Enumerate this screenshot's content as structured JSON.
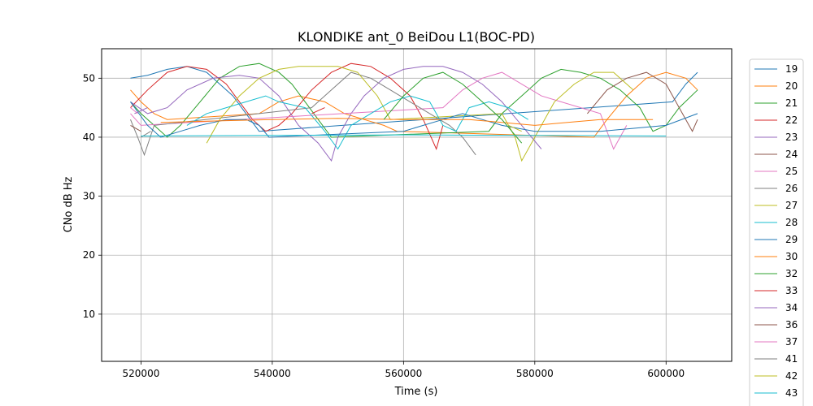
{
  "chart_data": {
    "type": "line",
    "title": "KLONDIKE ant_0 BeiDou L1(BOC-PD)",
    "xlabel": "Time (s)",
    "ylabel": "CNo dB Hz",
    "xlim": [
      514000,
      610000
    ],
    "ylim": [
      2,
      55
    ],
    "xticks": [
      520000,
      540000,
      560000,
      580000,
      600000
    ],
    "xtick_labels": [
      "520000",
      "540000",
      "560000",
      "580000",
      "600000"
    ],
    "yticks": [
      10,
      20,
      30,
      40,
      50
    ],
    "ytick_labels": [
      "10",
      "20",
      "30",
      "40",
      "50"
    ],
    "grid": true,
    "legend_position": "right, outside plot",
    "series": [
      {
        "name": "19",
        "color": "#1f77b4",
        "x": [
          518400,
          521000,
          524000,
          527000,
          530000,
          532000,
          534000,
          536000,
          538000,
          601000,
          603000,
          604800
        ],
        "y": [
          50,
          50.5,
          51.5,
          52,
          51,
          49,
          47,
          44,
          41,
          46,
          49,
          51
        ]
      },
      {
        "name": "20",
        "color": "#ff7f0e",
        "x": [
          518400,
          520000,
          522000,
          524000,
          538000,
          541000,
          544000,
          548000,
          551000,
          554000,
          557000,
          559000,
          589000,
          591000,
          594000,
          597000,
          600000,
          603000,
          604800
        ],
        "y": [
          48,
          46,
          44,
          43,
          44,
          46,
          47,
          46,
          44,
          43,
          42,
          41,
          40,
          43,
          47,
          50,
          51,
          50,
          48
        ]
      },
      {
        "name": "21",
        "color": "#2ca02c",
        "x": [
          518400,
          520000,
          522000,
          524000,
          526000,
          529000,
          532000,
          535000,
          538000,
          541000,
          543000,
          545000,
          547000,
          549000,
          573000,
          575000,
          578000,
          581000,
          584000,
          587000,
          590000,
          593000,
          596000,
          598000,
          600000,
          602000,
          604800
        ],
        "y": [
          46,
          44,
          42,
          40,
          42,
          46,
          50,
          52,
          52.5,
          51,
          49,
          46,
          43,
          40,
          41,
          44,
          47,
          50,
          51.5,
          51,
          50,
          48,
          45,
          41,
          42,
          45,
          48
        ]
      },
      {
        "name": "22",
        "color": "#d62728",
        "x": [
          518400,
          521000,
          524000,
          527000,
          530000,
          533000,
          535000,
          537000,
          539000,
          541000,
          543000,
          546000,
          549000,
          552000,
          555000,
          558000,
          561000,
          563000,
          565000,
          566000
        ],
        "y": [
          45,
          48,
          51,
          52,
          51.5,
          49,
          46,
          43,
          41,
          42,
          44,
          48,
          51,
          52.5,
          52,
          50,
          47,
          43,
          38,
          42
        ]
      },
      {
        "name": "23",
        "color": "#9467bd",
        "x": [
          518400,
          521000,
          524000,
          527000,
          531000,
          535000,
          538000,
          541000,
          544000,
          547000,
          549000,
          550000,
          552000,
          554000,
          557000,
          560000,
          563000,
          566000,
          569000,
          572000,
          575000,
          578000,
          581000
        ],
        "y": [
          46,
          44,
          45,
          48,
          50,
          50.5,
          50,
          47,
          42,
          39,
          36,
          40,
          44,
          47,
          50,
          51.5,
          52,
          52,
          51,
          49,
          46,
          42,
          38
        ]
      },
      {
        "name": "24",
        "color": "#8c564b",
        "x": [
          588000,
          591000,
          594000,
          597000,
          600000,
          602000,
          604000,
          604800
        ],
        "y": [
          44,
          48,
          50,
          51,
          49,
          45,
          41,
          43
        ]
      },
      {
        "name": "25",
        "color": "#e377c2",
        "x": [
          518400,
          520000,
          566000,
          569000,
          572000,
          575000,
          578000,
          581000,
          584000,
          587000,
          590000,
          592000,
          594000
        ],
        "y": [
          44,
          42,
          45,
          48,
          50,
          51,
          49,
          47,
          46,
          45,
          44,
          38,
          42
        ]
      },
      {
        "name": "26",
        "color": "#7f7f7f",
        "x": [
          518400,
          519500,
          520500,
          522000,
          546000,
          549000,
          552000,
          555000,
          558000,
          561000,
          564000,
          567000,
          569000,
          571000
        ],
        "y": [
          43,
          40,
          37,
          42,
          45,
          48,
          51,
          50,
          48,
          46,
          44,
          42,
          40,
          37
        ]
      },
      {
        "name": "27",
        "color": "#bcbd22",
        "x": [
          530000,
          532000,
          535000,
          538000,
          541000,
          544000,
          547000,
          550000,
          553000,
          556000,
          558000,
          575000,
          577000,
          578000,
          580000,
          583000,
          586000,
          589000,
          592000,
          595000
        ],
        "y": [
          39,
          43,
          47,
          50,
          51.5,
          52,
          52,
          52,
          51,
          47,
          43,
          44,
          40,
          36,
          40,
          46,
          49,
          51,
          51,
          48
        ]
      },
      {
        "name": "28",
        "color": "#17becf",
        "x": [
          527000,
          530000,
          533000,
          536000,
          539000,
          541000,
          545000,
          548000,
          550000,
          552000,
          555000,
          558000,
          561000,
          564000,
          566000,
          568000,
          570000,
          573000,
          576000,
          579000
        ],
        "y": [
          42,
          44,
          45,
          46,
          47,
          46,
          45,
          41,
          38,
          42,
          44,
          46,
          47,
          46,
          42,
          41,
          45,
          46,
          45,
          43
        ]
      },
      {
        "name": "29",
        "color": "#1f77b4",
        "x": [
          518400,
          521000,
          523000,
          526000,
          529000,
          533000,
          536000,
          538000,
          539500,
          560000,
          563000,
          566000,
          569000,
          572000,
          575000,
          580000,
          590000,
          600000,
          604800
        ],
        "y": [
          46,
          42,
          40,
          41,
          42,
          43,
          43,
          42,
          40,
          41,
          42,
          43,
          44,
          43,
          42,
          41,
          41,
          42,
          44
        ]
      },
      {
        "name": "30",
        "color": "#ff7f0e",
        "x": [
          523000,
          533000,
          540000,
          550000,
          560000,
          570000,
          575000,
          580000,
          585000,
          590000,
          595000,
          598000
        ],
        "y": [
          42.5,
          42.8,
          43,
          43.2,
          43,
          43,
          42.5,
          42,
          42.5,
          43,
          43,
          43
        ]
      },
      {
        "name": "32",
        "color": "#2ca02c",
        "x": [
          557000,
          560000,
          563000,
          566000,
          569000,
          572000,
          575000,
          578000
        ],
        "y": [
          43,
          47,
          50,
          51,
          49,
          46,
          43,
          39
        ]
      },
      {
        "name": "33",
        "color": "#d62728",
        "x": [
          546000,
          548000
        ],
        "y": [
          44,
          45
        ]
      },
      {
        "name": "34",
        "color": "#9467bd",
        "x": [
          519000,
          521000
        ],
        "y": [
          44,
          45
        ]
      },
      {
        "name": "36",
        "color": "#8c564b",
        "x": [
          518400,
          520000
        ],
        "y": [
          42,
          41
        ]
      },
      {
        "name": "37",
        "color": "#e377c2",
        "x": [
          518400,
          519500
        ],
        "y": [
          45,
          44
        ]
      },
      {
        "name": "41",
        "color": "#7f7f7f",
        "x": [
          520000,
          521500
        ],
        "y": [
          40,
          41
        ]
      },
      {
        "name": "42",
        "color": "#bcbd22",
        "x": [
          576000,
          578000
        ],
        "y": [
          42,
          41
        ]
      },
      {
        "name": "43",
        "color": "#17becf",
        "x": [
          520000,
          540000,
          560000,
          580000,
          600000
        ],
        "y": [
          40.2,
          40.3,
          40.4,
          40.3,
          40.2
        ]
      }
    ]
  }
}
